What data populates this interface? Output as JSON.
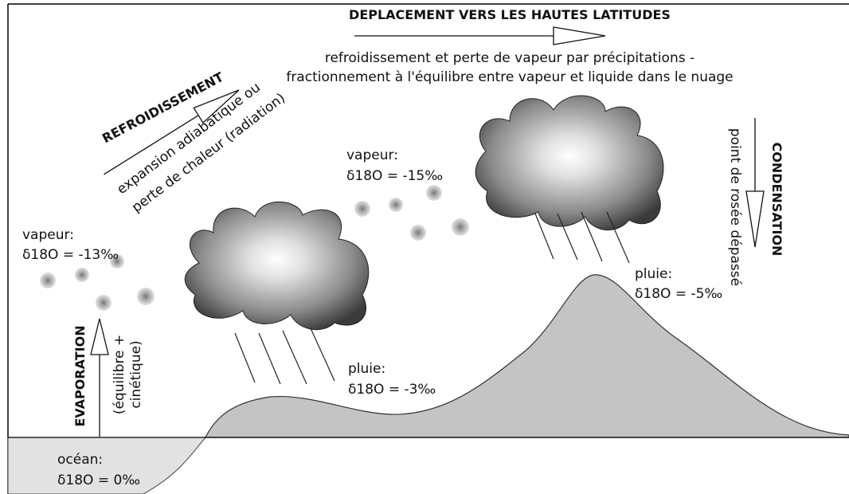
{
  "title": "DEPLACEMENT VERS LES HAUTES LATITUDES",
  "subtitle_lines": [
    "refroidissement et perte de vapeur par précipitations -",
    "fractionnement à l'équilibre entre vapeur et liquide dans le nuage"
  ],
  "cooling": {
    "label": "REFROIDISSEMENT",
    "notes": [
      "expansion adiabatique ou",
      "perte de chaleur (radiation)"
    ]
  },
  "condensation": {
    "label": "CONDENSATION",
    "note": "point de rosée dépassé"
  },
  "evaporation": {
    "label": "EVAPORATION",
    "notes": [
      "(équilibre +",
      "cinétique)"
    ]
  },
  "annotations": [
    {
      "label": "vapeur:",
      "value": "δ18O = -13‰"
    },
    {
      "label": "vapeur:",
      "value": "δ18O = -15‰"
    },
    {
      "label": "pluie:",
      "value": "δ18O = -3‰"
    },
    {
      "label": "pluie:",
      "value": "δ18O = -5‰"
    },
    {
      "label": "océan:",
      "value": "δ18O = 0‰"
    }
  ]
}
